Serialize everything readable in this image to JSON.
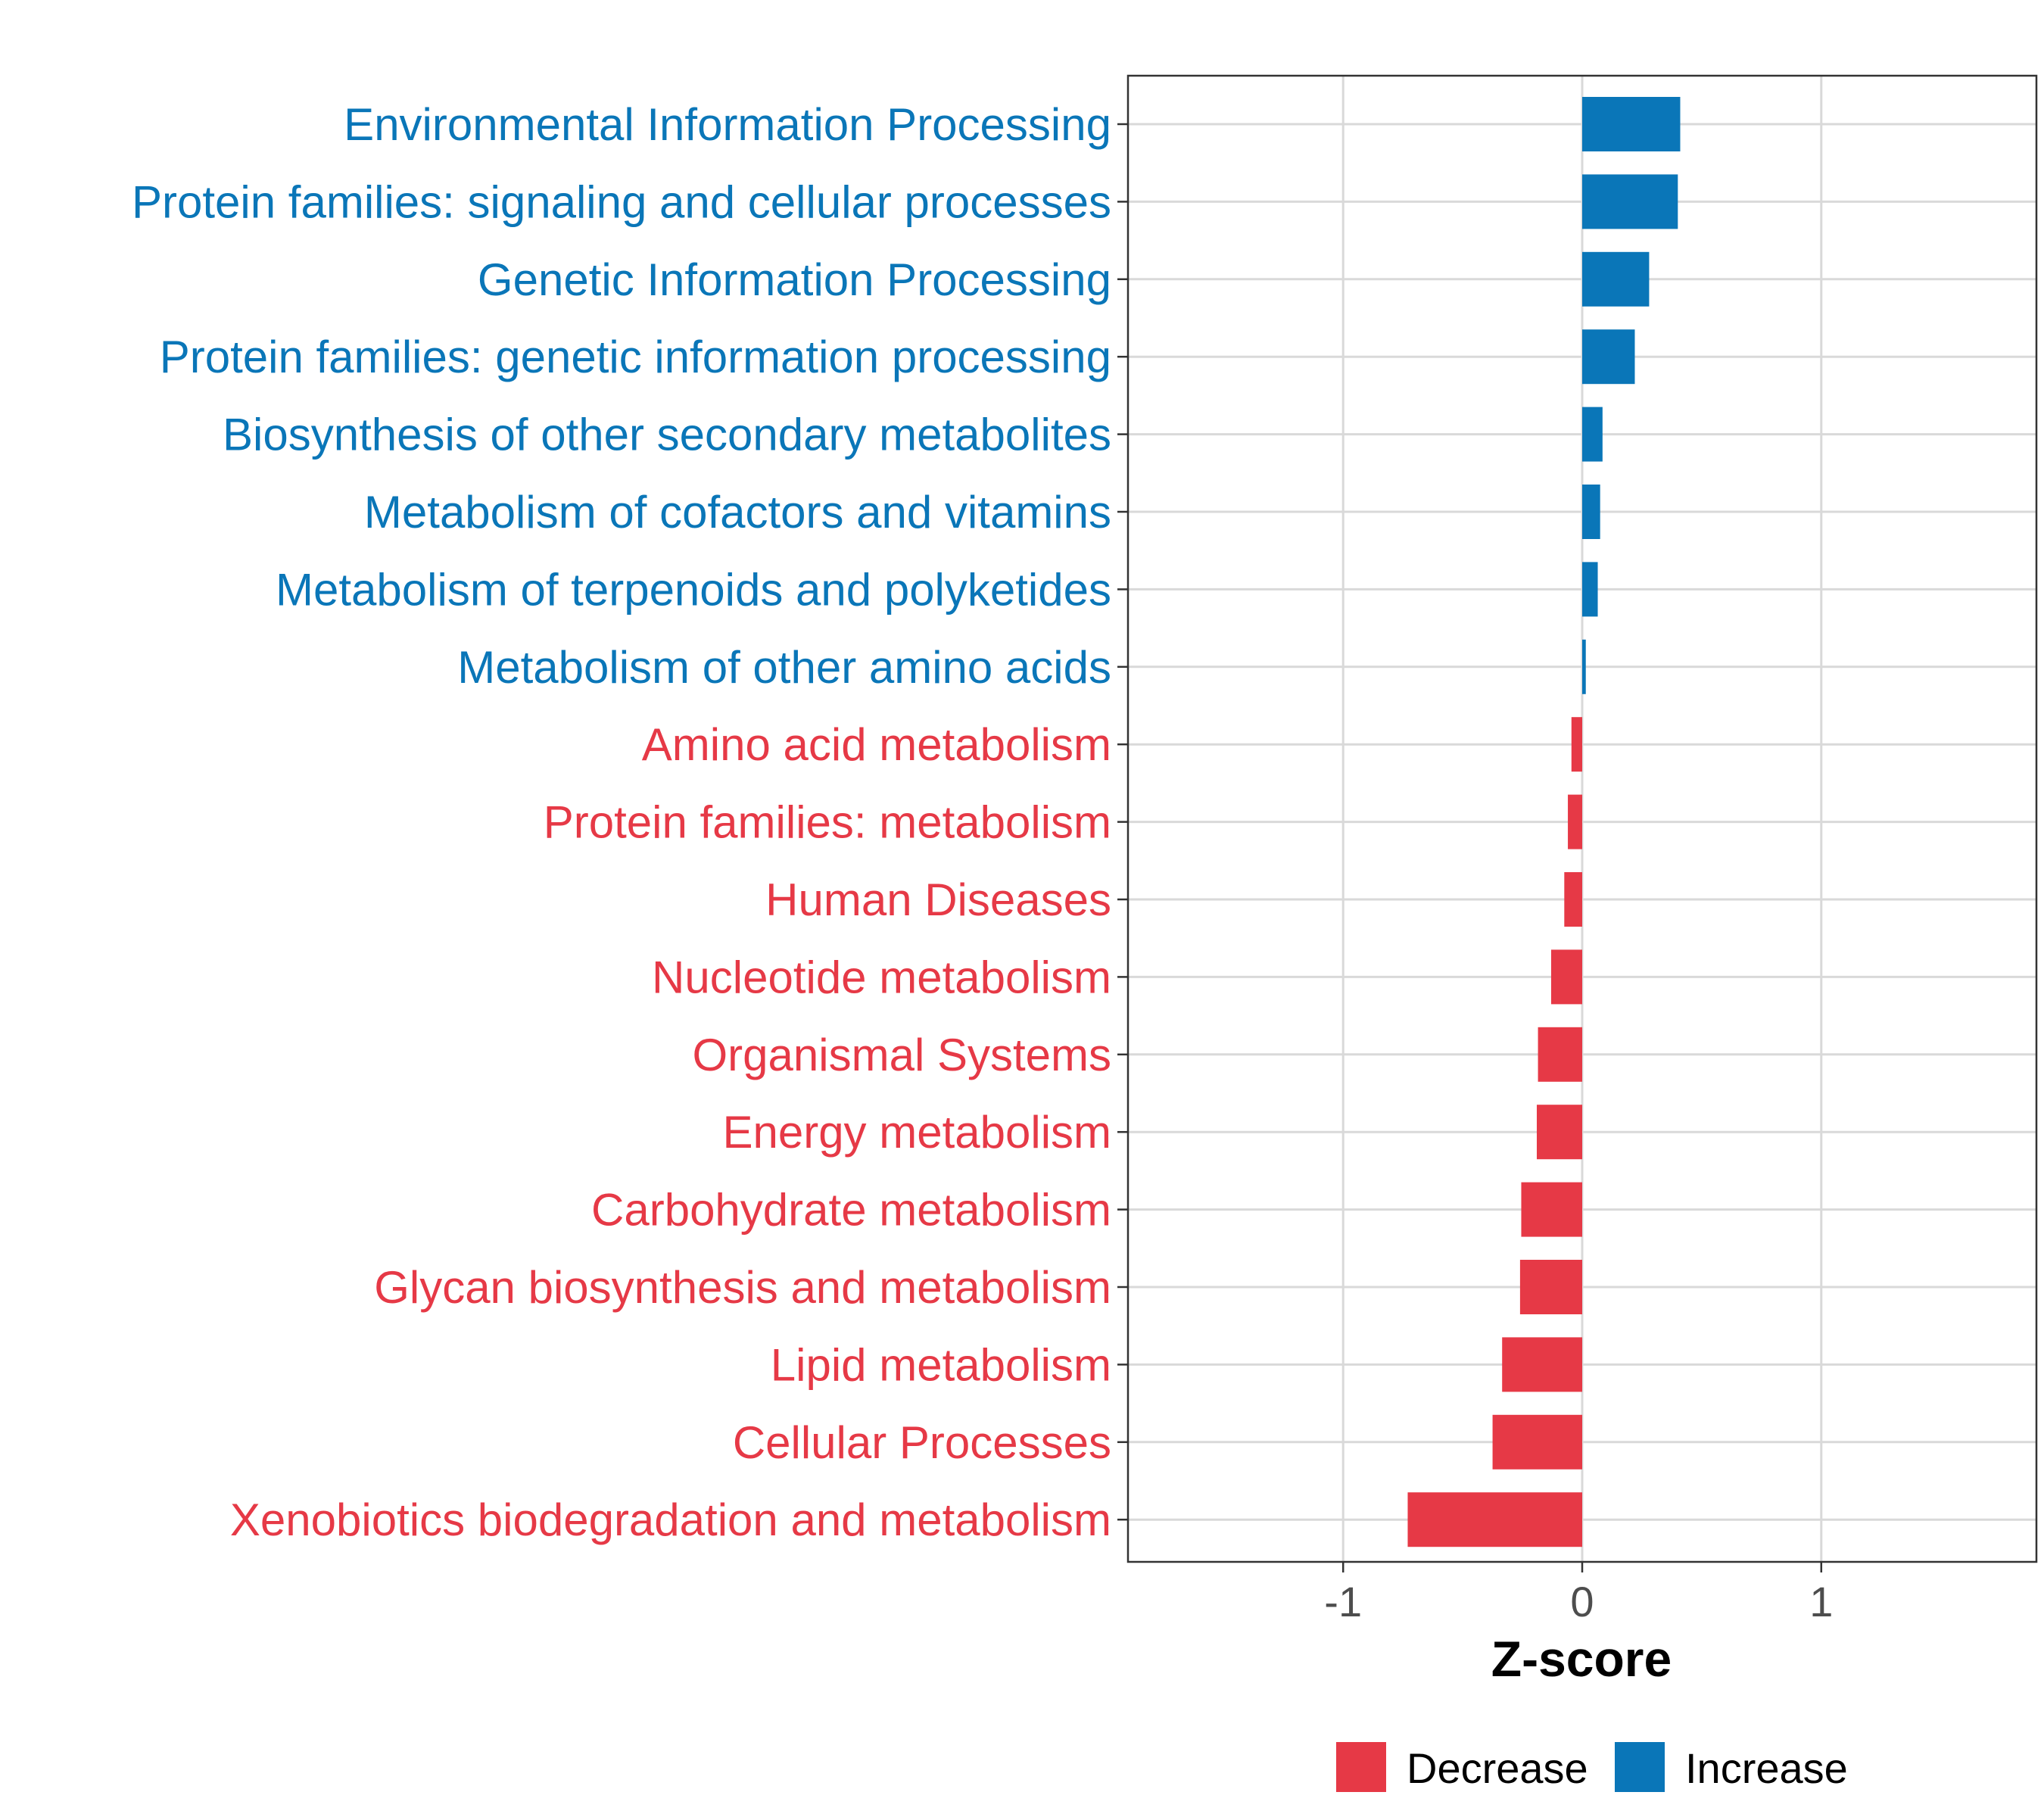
{
  "chart_data": {
    "type": "bar",
    "orientation": "horizontal",
    "title": "",
    "xlabel": "Z-score",
    "ylabel": "",
    "xlim": [
      -1.9,
      1.9
    ],
    "xticks": [
      -1,
      0,
      1
    ],
    "xtick_labels": [
      "-1",
      "0",
      "1"
    ],
    "grid": true,
    "colors": {
      "Decrease": "#e63946",
      "Increase": "#0a76b8"
    },
    "legend": {
      "position": "bottom",
      "entries": [
        {
          "label": "Decrease",
          "color": "#e63946"
        },
        {
          "label": "Increase",
          "color": "#0a76b8"
        }
      ]
    },
    "categories": [
      "Environmental Information Processing",
      "Protein families: signaling and cellular processes",
      "Genetic Information Processing",
      "Protein families: genetic information processing",
      "Biosynthesis of other secondary metabolites",
      "Metabolism of cofactors and vitamins",
      "Metabolism of terpenoids and polyketides",
      "Metabolism of other amino acids",
      "Amino acid metabolism",
      "Protein families: metabolism",
      "Human Diseases",
      "Nucleotide metabolism",
      "Organismal Systems",
      "Energy metabolism",
      "Carbohydrate metabolism",
      "Glycan biosynthesis and metabolism",
      "Lipid metabolism",
      "Cellular Processes",
      "Xenobiotics biodegradation and metabolism"
    ],
    "values": [
      0.41,
      0.4,
      0.28,
      0.22,
      0.085,
      0.075,
      0.065,
      0.015,
      -0.045,
      -0.06,
      -0.075,
      -0.13,
      -0.185,
      -0.19,
      -0.255,
      -0.26,
      -0.335,
      -0.375,
      -0.73
    ],
    "groups": [
      "Increase",
      "Increase",
      "Increase",
      "Increase",
      "Increase",
      "Increase",
      "Increase",
      "Increase",
      "Decrease",
      "Decrease",
      "Decrease",
      "Decrease",
      "Decrease",
      "Decrease",
      "Decrease",
      "Decrease",
      "Decrease",
      "Decrease",
      "Decrease"
    ]
  }
}
